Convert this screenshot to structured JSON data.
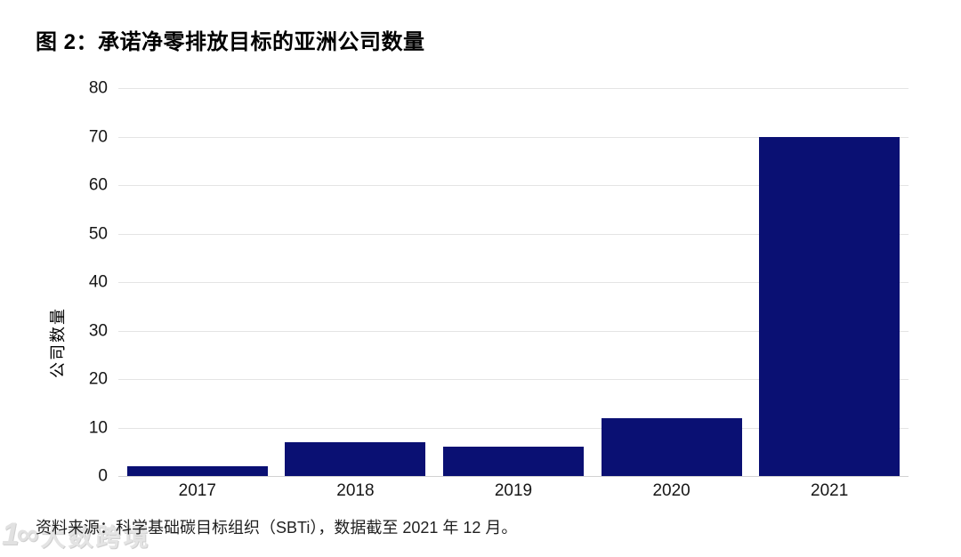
{
  "title": "图 2：承诺净零排放目标的亚洲公司数量",
  "source_note": "资料来源：科学基础碳目标组织（SBTi），数据截至 2021 年 12 月。",
  "watermark": {
    "logo_glyph": "1∞",
    "text": "大数跨境"
  },
  "chart_data": {
    "type": "bar",
    "title": "图 2：承诺净零排放目标的亚洲公司数量",
    "categories": [
      "2017",
      "2018",
      "2019",
      "2020",
      "2021"
    ],
    "values": [
      2,
      7,
      6,
      12,
      70
    ],
    "xlabel": "",
    "ylabel": "公司数量",
    "ylim": [
      0,
      80
    ],
    "yticks": [
      0,
      10,
      20,
      30,
      40,
      50,
      60,
      70,
      80
    ],
    "grid": true,
    "legend_position": "none",
    "bar_color": "#0a1073",
    "gridline_color": "#e4e4e4",
    "tick_color": "#161616"
  }
}
